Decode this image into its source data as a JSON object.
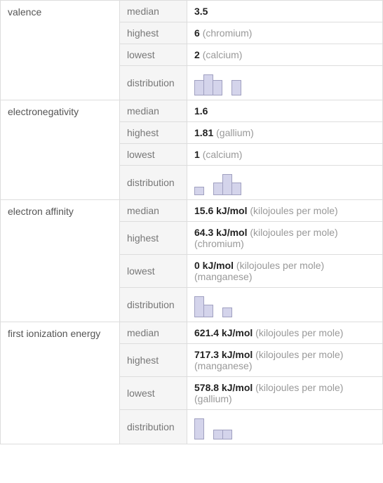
{
  "sections": [
    {
      "name": "valence",
      "rows": {
        "median": {
          "value": "3.5",
          "unit": ""
        },
        "highest": {
          "value": "6",
          "unit": "(chromium)"
        },
        "lowest": {
          "value": "2",
          "unit": "(calcium)"
        }
      },
      "distribution": {
        "heights": [
          22,
          30,
          22,
          0,
          22,
          0
        ],
        "bar_color": "#d4d4eb",
        "border_color": "#a0a0c0"
      }
    },
    {
      "name": "electronegativity",
      "rows": {
        "median": {
          "value": "1.6",
          "unit": ""
        },
        "highest": {
          "value": "1.81",
          "unit": "(gallium)"
        },
        "lowest": {
          "value": "1",
          "unit": "(calcium)"
        }
      },
      "distribution": {
        "heights": [
          12,
          0,
          18,
          30,
          18
        ],
        "bar_color": "#d4d4eb",
        "border_color": "#a0a0c0"
      }
    },
    {
      "name": "electron affinity",
      "rows": {
        "median": {
          "value": "15.6 kJ/mol",
          "unit": "(kilojoules per mole)"
        },
        "highest": {
          "value": "64.3 kJ/mol",
          "unit": "(kilojoules per mole) (chromium)"
        },
        "lowest": {
          "value": "0 kJ/mol",
          "unit": "(kilojoules per mole) (manganese)"
        }
      },
      "distribution": {
        "heights": [
          30,
          18,
          0,
          14
        ],
        "bar_color": "#d4d4eb",
        "border_color": "#a0a0c0"
      }
    },
    {
      "name": "first ionization energy",
      "rows": {
        "median": {
          "value": "621.4 kJ/mol",
          "unit": "(kilojoules per mole)"
        },
        "highest": {
          "value": "717.3 kJ/mol",
          "unit": "(kilojoules per mole) (manganese)"
        },
        "lowest": {
          "value": "578.8 kJ/mol",
          "unit": "(kilojoules per mole) (gallium)"
        }
      },
      "distribution": {
        "heights": [
          30,
          0,
          14,
          14
        ],
        "bar_color": "#d4d4eb",
        "border_color": "#a0a0c0"
      }
    }
  ],
  "labels": {
    "median": "median",
    "highest": "highest",
    "lowest": "lowest",
    "distribution": "distribution"
  }
}
